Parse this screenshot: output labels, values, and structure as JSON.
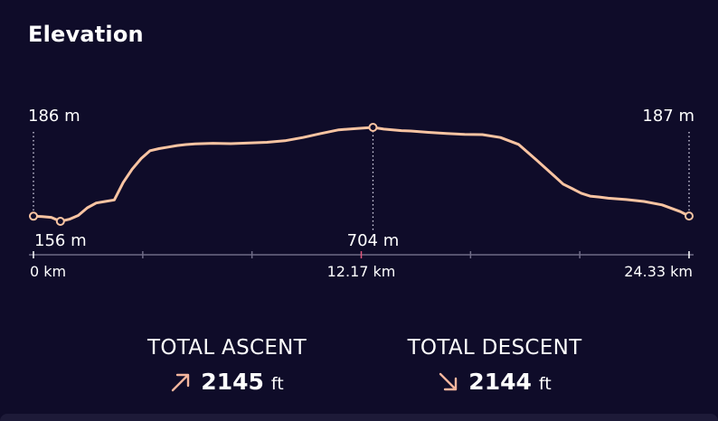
{
  "header": {
    "title": "Elevation"
  },
  "chart_data": {
    "type": "line",
    "title": "",
    "xlabel": "",
    "ylabel": "",
    "x_unit": "km",
    "y_unit": "m",
    "xlim": [
      0,
      24.33
    ],
    "ylim": [
      156,
      704
    ],
    "x_tick_labels": [
      "0 km",
      "12.17 km",
      "24.33 km"
    ],
    "annotations": {
      "start": {
        "x": 0,
        "y": 186,
        "label": "186 m"
      },
      "min": {
        "x": 1.0,
        "y": 156,
        "label": "156 m"
      },
      "max": {
        "x": 12.6,
        "y": 704,
        "label": "704 m"
      },
      "end": {
        "x": 24.33,
        "y": 187,
        "label": "187 m"
      }
    },
    "series": [
      {
        "x": [
          0,
          0.33,
          0.66,
          1.0,
          1.33,
          1.66,
          2.0,
          2.33,
          2.66,
          3.0,
          3.33,
          3.66,
          4.0,
          4.33,
          4.66,
          5.0,
          5.33,
          5.66,
          6.0,
          6.66,
          7.33,
          8.0,
          8.66,
          9.33,
          10.0,
          10.66,
          11.33,
          12.0,
          12.6,
          13.0,
          13.33,
          13.66,
          14.0,
          14.66,
          15.33,
          16.0,
          16.66,
          17.33,
          18.0,
          18.66,
          19.33,
          19.66,
          20.0,
          20.33,
          20.66,
          21.0,
          21.33,
          22.0,
          22.66,
          23.33,
          24.0,
          24.33
        ],
        "y": [
          186,
          184,
          179,
          156,
          168,
          190,
          235,
          263,
          272,
          281,
          382,
          460,
          523,
          568,
          580,
          589,
          598,
          604,
          608,
          611,
          609,
          613,
          617,
          626,
          645,
          668,
          690,
          697,
          704,
          694,
          689,
          685,
          683,
          675,
          668,
          663,
          662,
          645,
          605,
          515,
          420,
          373,
          346,
          320,
          303,
          298,
          291,
          283,
          272,
          252,
          213,
          187
        ]
      }
    ],
    "colors": {
      "line": "#f9c4a2",
      "axis": "#6e6b86",
      "mid_tick": "#e0567a",
      "guide": "#d7d5e6"
    }
  },
  "stats": {
    "ascent": {
      "label": "TOTAL ASCENT",
      "value": "2145",
      "unit": "ft",
      "icon": "arrow-up-right-icon",
      "color": "#f4b59d"
    },
    "descent": {
      "label": "TOTAL DESCENT",
      "value": "2144",
      "unit": "ft",
      "icon": "arrow-down-right-icon",
      "color": "#f4b59d"
    }
  }
}
